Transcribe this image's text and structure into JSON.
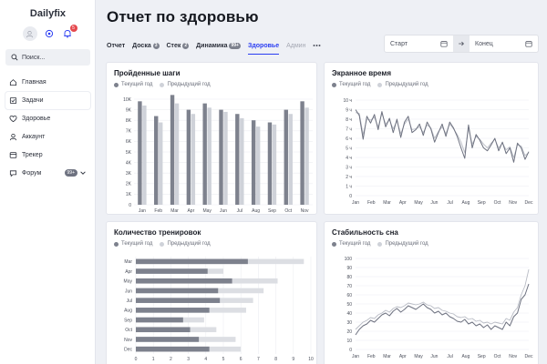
{
  "app": {
    "name": "Dailyfix",
    "bell_count": "5"
  },
  "search": {
    "placeholder": "Поиск..."
  },
  "sidebar": {
    "items": [
      {
        "label": "Главная",
        "icon": "home-icon"
      },
      {
        "label": "Задачи",
        "icon": "tasks-icon"
      },
      {
        "label": "Здоровье",
        "icon": "health-icon"
      },
      {
        "label": "Аккаунт",
        "icon": "account-icon"
      },
      {
        "label": "Трекер",
        "icon": "tracker-icon"
      },
      {
        "label": "Форум",
        "icon": "forum-icon",
        "badge": "99+"
      }
    ]
  },
  "header": {
    "title": "Отчет по здоровью"
  },
  "tabs": [
    {
      "label": "Отчет"
    },
    {
      "label": "Доска",
      "badge": "3"
    },
    {
      "label": "Стек",
      "badge": "2"
    },
    {
      "label": "Динамика",
      "badge": "99+"
    },
    {
      "label": "Здоровье"
    },
    {
      "label": "Админ"
    }
  ],
  "date_range": {
    "start_placeholder": "Старт",
    "end_placeholder": "Конец"
  },
  "colors": {
    "accent": "#2a3df2",
    "current": "#7d818d",
    "previous": "#cfd2d9"
  },
  "legend": {
    "current": "Текущий год",
    "previous": "Предыдущий год"
  },
  "chart_data": [
    {
      "type": "bar",
      "title": "Пройденные шаги",
      "categories": [
        "Jan",
        "Feb",
        "Mar",
        "Apr",
        "May",
        "Jun",
        "Jul",
        "Aug",
        "Sep",
        "Oct",
        "Nov"
      ],
      "y_ticks": [
        "0",
        "1K",
        "2K",
        "3K",
        "4K",
        "5K",
        "6K",
        "7K",
        "8K",
        "9K",
        "10K"
      ],
      "ylim": [
        0,
        10000
      ],
      "series": [
        {
          "name": "Текущий год",
          "values": [
            9800,
            8400,
            10400,
            9000,
            9600,
            9000,
            8600,
            8000,
            7800,
            9000,
            9800
          ]
        },
        {
          "name": "Предыдущий год",
          "values": [
            9400,
            7800,
            9600,
            8600,
            9200,
            8800,
            8200,
            7400,
            7600,
            8600,
            9200
          ]
        }
      ]
    },
    {
      "type": "line",
      "title": "Экранное время",
      "x_ticks": [
        "Jan",
        "Feb",
        "Mar",
        "Apr",
        "May",
        "Jun",
        "Jul",
        "Aug",
        "Sep",
        "Oct",
        "Nov",
        "Dec"
      ],
      "y_ticks": [
        "0",
        "1 ч",
        "2 ч",
        "3 ч",
        "4 ч",
        "5 ч",
        "6 ч",
        "7 ч",
        "8 ч",
        "9 ч",
        "10 ч"
      ],
      "ylim": [
        0,
        10
      ],
      "series": [
        {
          "name": "Текущий год",
          "values": [
            9.0,
            8.4,
            5.9,
            8.3,
            7.6,
            8.5,
            6.9,
            8.8,
            7.2,
            8.1,
            6.6,
            8.0,
            6.1,
            7.7,
            8.3,
            6.6,
            6.9,
            7.5,
            6.3,
            7.7,
            7.0,
            5.6,
            6.6,
            7.5,
            6.2,
            7.7,
            7.1,
            6.2,
            5.0,
            3.9,
            7.4,
            5.0,
            6.4,
            5.8,
            5.0,
            4.7,
            5.3,
            6.0,
            4.7,
            5.6,
            4.4,
            5.0,
            3.5,
            5.5,
            5.0,
            3.8,
            4.6
          ]
        },
        {
          "name": "Предыдущий год",
          "values": [
            8.7,
            8.6,
            6.4,
            8.0,
            7.9,
            8.2,
            7.2,
            8.6,
            7.5,
            7.9,
            7.0,
            7.8,
            6.5,
            7.5,
            8.0,
            6.9,
            7.0,
            7.2,
            6.6,
            7.4,
            7.1,
            6.0,
            6.7,
            7.2,
            6.5,
            7.5,
            7.0,
            6.4,
            5.6,
            4.5,
            7.0,
            5.4,
            6.2,
            5.9,
            5.4,
            5.0,
            5.5,
            5.9,
            5.0,
            5.5,
            4.8,
            5.1,
            4.0,
            5.3,
            5.2,
            4.2,
            4.5
          ]
        }
      ]
    },
    {
      "type": "bar",
      "orientation": "horizontal",
      "title": "Количество тренировок",
      "categories": [
        "Mar",
        "Apr",
        "May",
        "Jun",
        "Jul",
        "Aug",
        "Sep",
        "Oct",
        "Nov",
        "Dec"
      ],
      "x_ticks": [
        "0",
        "1",
        "2",
        "3",
        "4",
        "5",
        "6",
        "7",
        "8",
        "9",
        "10"
      ],
      "xlim": [
        0,
        10
      ],
      "series": [
        {
          "name": "Текущий год",
          "values": [
            6.4,
            4.1,
            5.5,
            4.7,
            4.8,
            4.2,
            2.7,
            3.1,
            3.6,
            4.2
          ]
        },
        {
          "name": "Предыдущий год",
          "values": [
            9.6,
            5.0,
            8.1,
            7.3,
            6.7,
            6.3,
            3.9,
            4.6,
            5.7,
            6.0
          ]
        }
      ]
    },
    {
      "type": "line",
      "title": "Стабильность сна",
      "x_ticks": [
        "Jan",
        "Feb",
        "Mar",
        "Apr",
        "May",
        "Jun",
        "Jul",
        "Aug",
        "Sep",
        "Oct",
        "Nov",
        "Dec"
      ],
      "y_ticks": [
        "0",
        "10",
        "20",
        "30",
        "40",
        "50",
        "60",
        "70",
        "80",
        "90",
        "100"
      ],
      "ylim": [
        0,
        100
      ],
      "series": [
        {
          "name": "Текущий год",
          "values": [
            16,
            22,
            26,
            28,
            32,
            30,
            34,
            38,
            40,
            37,
            42,
            45,
            41,
            44,
            48,
            46,
            44,
            47,
            50,
            46,
            44,
            40,
            42,
            38,
            40,
            36,
            34,
            31,
            30,
            33,
            28,
            30,
            26,
            28,
            24,
            27,
            22,
            26,
            24,
            22,
            30,
            26,
            36,
            40,
            55,
            60,
            72
          ]
        },
        {
          "name": "Предыдущий год",
          "values": [
            22,
            26,
            30,
            32,
            35,
            34,
            38,
            40,
            43,
            41,
            45,
            47,
            46,
            48,
            51,
            50,
            49,
            50,
            52,
            49,
            48,
            45,
            46,
            43,
            42,
            40,
            39,
            36,
            35,
            36,
            33,
            34,
            31,
            32,
            29,
            30,
            28,
            30,
            29,
            28,
            34,
            32,
            41,
            46,
            60,
            70,
            88
          ]
        }
      ]
    }
  ]
}
